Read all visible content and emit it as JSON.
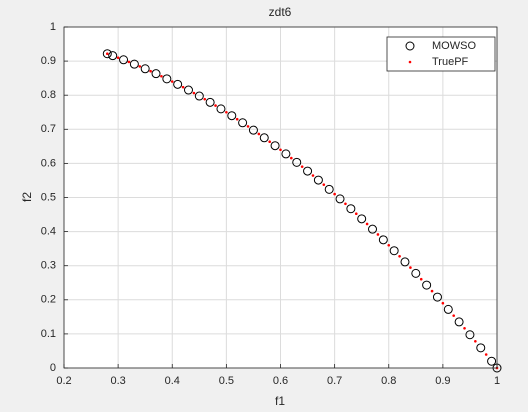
{
  "chart_data": {
    "type": "scatter",
    "title": "zdt6",
    "x_label": "f1",
    "y_label": "f2",
    "xlim": [
      0.2,
      1
    ],
    "ylim": [
      0,
      1
    ],
    "xticks": [
      0.2,
      0.3,
      0.4,
      0.5,
      0.6,
      0.7,
      0.8,
      0.9,
      1
    ],
    "yticks": [
      0,
      0.1,
      0.2,
      0.3,
      0.4,
      0.5,
      0.6,
      0.7,
      0.8,
      0.9,
      1
    ],
    "grid": true,
    "legend": "top-right",
    "series": [
      {
        "name": "MOWSO",
        "color": "#000000",
        "marker": "circle",
        "x": [
          0.28,
          0.29,
          0.31,
          0.33,
          0.35,
          0.37,
          0.39,
          0.41,
          0.43,
          0.45,
          0.47,
          0.49,
          0.51,
          0.53,
          0.55,
          0.57,
          0.59,
          0.61,
          0.63,
          0.65,
          0.67,
          0.69,
          0.71,
          0.73,
          0.75,
          0.77,
          0.79,
          0.81,
          0.83,
          0.85,
          0.87,
          0.89,
          0.91,
          0.93,
          0.95,
          0.97,
          0.99,
          1.0
        ],
        "values": [
          0.9216,
          0.9159,
          0.9039,
          0.8911,
          0.8775,
          0.8631,
          0.8479,
          0.8319,
          0.8151,
          0.7975,
          0.7791,
          0.7599,
          0.7399,
          0.7191,
          0.6975,
          0.6751,
          0.6519,
          0.6279,
          0.6031,
          0.5775,
          0.5511,
          0.5239,
          0.4959,
          0.4671,
          0.4375,
          0.4071,
          0.3759,
          0.3439,
          0.3111,
          0.2775,
          0.2431,
          0.2079,
          0.1719,
          0.1351,
          0.0975,
          0.0591,
          0.0199,
          0
        ]
      },
      {
        "name": "TruePF",
        "color": "#ff0000",
        "marker": "dot",
        "x": [
          0.28,
          0.3,
          0.32,
          0.34,
          0.36,
          0.38,
          0.4,
          0.42,
          0.44,
          0.46,
          0.48,
          0.5,
          0.52,
          0.54,
          0.56,
          0.58,
          0.6,
          0.62,
          0.64,
          0.66,
          0.68,
          0.7,
          0.72,
          0.74,
          0.76,
          0.78,
          0.8,
          0.82,
          0.84,
          0.86,
          0.88,
          0.9,
          0.92,
          0.94,
          0.96,
          0.98,
          1.0
        ],
        "values": [
          0.9216,
          0.91,
          0.8976,
          0.8844,
          0.8704,
          0.8556,
          0.84,
          0.8236,
          0.8064,
          0.7884,
          0.7696,
          0.75,
          0.7296,
          0.7084,
          0.6864,
          0.6636,
          0.64,
          0.6156,
          0.5904,
          0.5644,
          0.5376,
          0.51,
          0.4816,
          0.4524,
          0.4224,
          0.3916,
          0.36,
          0.3276,
          0.2944,
          0.2604,
          0.2256,
          0.19,
          0.1536,
          0.1164,
          0.0784,
          0.0396,
          0
        ]
      }
    ]
  }
}
